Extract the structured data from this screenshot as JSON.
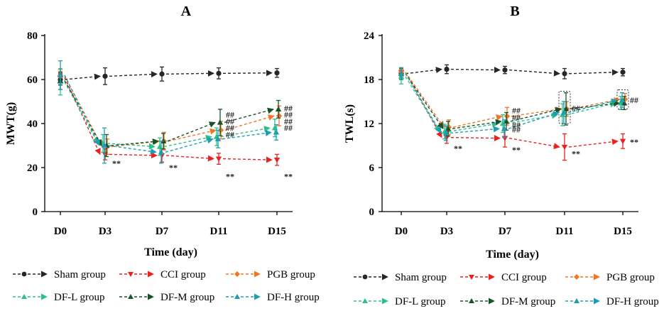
{
  "series_styles": [
    {
      "name": "Sham group",
      "color": "#262626",
      "marker": "circle"
    },
    {
      "name": "CCI group",
      "color": "#e8231f",
      "marker": "triangle-down"
    },
    {
      "name": "PGB group",
      "color": "#f07524",
      "marker": "diamond"
    },
    {
      "name": "DF-L group",
      "color": "#2ec08a",
      "marker": "triangle-up"
    },
    {
      "name": "DF-M group",
      "color": "#16532a",
      "marker": "triangle-up"
    },
    {
      "name": "DF-H group",
      "color": "#1c9db2",
      "marker": "triangle-up"
    }
  ],
  "chart_data": [
    {
      "type": "line",
      "title": "A",
      "xlabel": "Time (day)",
      "ylabel": "MWT(g)",
      "categories": [
        "D0",
        "D3",
        "D7",
        "D11",
        "D15"
      ],
      "ylim": [
        0,
        80
      ],
      "yticks": [
        0,
        20,
        40,
        60,
        80
      ],
      "series": [
        {
          "name": "Sham group",
          "values": [
            60,
            61.5,
            62.5,
            62.8,
            63
          ],
          "errors": [
            2.5,
            3.8,
            3.2,
            2.5,
            2
          ]
        },
        {
          "name": "CCI group",
          "values": [
            61,
            26,
            25.5,
            24,
            23.5
          ],
          "errors": [
            2,
            2.5,
            3,
            2.5,
            2.5
          ]
        },
        {
          "name": "PGB group",
          "values": [
            61.5,
            29.5,
            32,
            37,
            43.5
          ],
          "errors": [
            3,
            3.5,
            4,
            4,
            4.5
          ]
        },
        {
          "name": "DF-L group",
          "values": [
            59,
            31,
            29.5,
            34,
            38
          ],
          "errors": [
            6,
            4,
            4,
            4,
            4
          ]
        },
        {
          "name": "DF-M group",
          "values": [
            59.5,
            30,
            32,
            40.5,
            46.5
          ],
          "errors": [
            4,
            5,
            3.5,
            6,
            4
          ]
        },
        {
          "name": "DF-H group",
          "values": [
            62,
            30,
            27,
            33,
            36
          ],
          "errors": [
            6.5,
            8,
            5,
            4,
            3.5
          ]
        }
      ],
      "annotations": [
        {
          "text": "**",
          "x": "D3",
          "y": 22
        },
        {
          "text": "**",
          "x": "D7",
          "y": 20
        },
        {
          "text": "**",
          "x": "D11",
          "y": 16
        },
        {
          "text": "**",
          "x": "D15",
          "y": 16
        },
        {
          "text": "##",
          "x": "D11",
          "y": 44
        },
        {
          "text": "##",
          "x": "D11",
          "y": 41
        },
        {
          "text": "##",
          "x": "D11",
          "y": 38
        },
        {
          "text": "##",
          "x": "D11",
          "y": 35
        },
        {
          "text": "##",
          "x": "D15",
          "y": 47
        },
        {
          "text": "##",
          "x": "D15",
          "y": 44
        },
        {
          "text": "##",
          "x": "D15",
          "y": 41
        },
        {
          "text": "##",
          "x": "D15",
          "y": 38
        }
      ]
    },
    {
      "type": "line",
      "title": "B",
      "xlabel": "Time (day)",
      "ylabel": "TWL(s)",
      "categories": [
        "D0",
        "D3",
        "D7",
        "D11",
        "D15"
      ],
      "ylim": [
        0,
        24
      ],
      "yticks": [
        0,
        6,
        12,
        18,
        24
      ],
      "series": [
        {
          "name": "Sham group",
          "values": [
            18.8,
            19.4,
            19.3,
            18.8,
            19
          ],
          "errors": [
            0.8,
            0.6,
            0.5,
            0.7,
            0.5
          ]
        },
        {
          "name": "CCI group",
          "values": [
            19,
            10.1,
            10,
            8.8,
            9.6
          ],
          "errors": [
            0.5,
            0.8,
            1.2,
            1.8,
            1
          ]
        },
        {
          "name": "PGB group",
          "values": [
            19,
            11.5,
            13,
            14,
            15.3
          ],
          "errors": [
            0.6,
            1,
            1.2,
            1,
            0.8
          ]
        },
        {
          "name": "DF-L group",
          "values": [
            18.4,
            10.9,
            12,
            13.2,
            14.8
          ],
          "errors": [
            1,
            1,
            1.2,
            1.5,
            0.9
          ]
        },
        {
          "name": "DF-M group",
          "values": [
            18.8,
            11.3,
            12.3,
            14,
            14.8
          ],
          "errors": [
            0.8,
            1,
            1.2,
            2.2,
            0.9
          ]
        },
        {
          "name": "DF-H group",
          "values": [
            18.8,
            10.7,
            11.3,
            13.5,
            15.2
          ],
          "errors": [
            0.8,
            1,
            1.2,
            1.5,
            1
          ]
        }
      ],
      "annotations": [
        {
          "text": "**",
          "x": "D3",
          "y": 8.6
        },
        {
          "text": "**",
          "x": "D7",
          "y": 8.4
        },
        {
          "text": "**",
          "x": "D11",
          "y": 7.9
        },
        {
          "text": "**",
          "x": "D15",
          "y": 9.5
        },
        {
          "text": "##",
          "x": "D7",
          "y": 13.8
        },
        {
          "text": "##",
          "x": "D7",
          "y": 12.8
        },
        {
          "text": "##",
          "x": "D7",
          "y": 11.8
        },
        {
          "text": "##",
          "x": "D7",
          "y": 11.2
        },
        {
          "text": "##",
          "x": "D11",
          "y": 14.1
        },
        {
          "text": "##",
          "x": "D15",
          "y": 15.2
        }
      ]
    }
  ]
}
